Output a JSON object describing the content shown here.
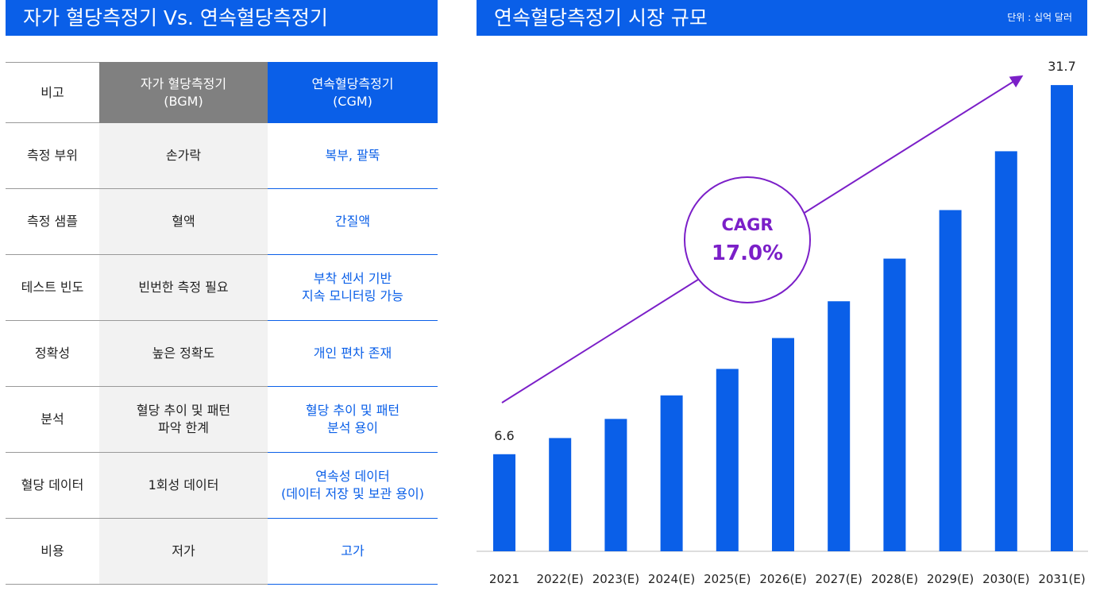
{
  "left": {
    "title": "자가 혈당측정기 Vs. 연속혈당측정기"
  },
  "table": {
    "header": [
      "비고",
      "자가 혈당측정기\n(BGM)",
      "연속혈당측정기\n(CGM)"
    ],
    "rows": [
      [
        "측정 부위",
        "손가락",
        "복부, 팔뚝"
      ],
      [
        "측정 샘플",
        "혈액",
        "간질액"
      ],
      [
        "테스트 빈도",
        "빈번한 측정 필요",
        "부착 센서 기반\n지속 모니터링 가능"
      ],
      [
        "정확성",
        "높은 정확도",
        "개인 편차 존재"
      ],
      [
        "분석",
        "혈당 추이 및 패턴\n파악 한계",
        "혈당 추이 및 패턴\n분석 용이"
      ],
      [
        "혈당 데이터",
        "1회성 데이터",
        "연속성 데이터\n(데이터 저장 및 보관 용이)"
      ],
      [
        "비용",
        "저가",
        "고가"
      ]
    ]
  },
  "chart_data": {
    "type": "bar",
    "title": "연속혈당측정기 시장 규모",
    "unit_note": "단위 : 십억 달러",
    "categories": [
      "2021",
      "2022(E)",
      "2023(E)",
      "2024(E)",
      "2025(E)",
      "2026(E)",
      "2027(E)",
      "2028(E)",
      "2029(E)",
      "2030(E)",
      "2031(E)"
    ],
    "values": [
      6.6,
      7.7,
      9.0,
      10.6,
      12.4,
      14.5,
      17.0,
      19.9,
      23.2,
      27.2,
      31.7
    ],
    "value_labels": [
      "6.6",
      null,
      null,
      null,
      null,
      null,
      null,
      null,
      null,
      null,
      "31.7"
    ],
    "color": "#0a5fe8",
    "ylim": [
      0,
      35
    ],
    "annotations": [
      "CAGR",
      "17.0%"
    ]
  }
}
